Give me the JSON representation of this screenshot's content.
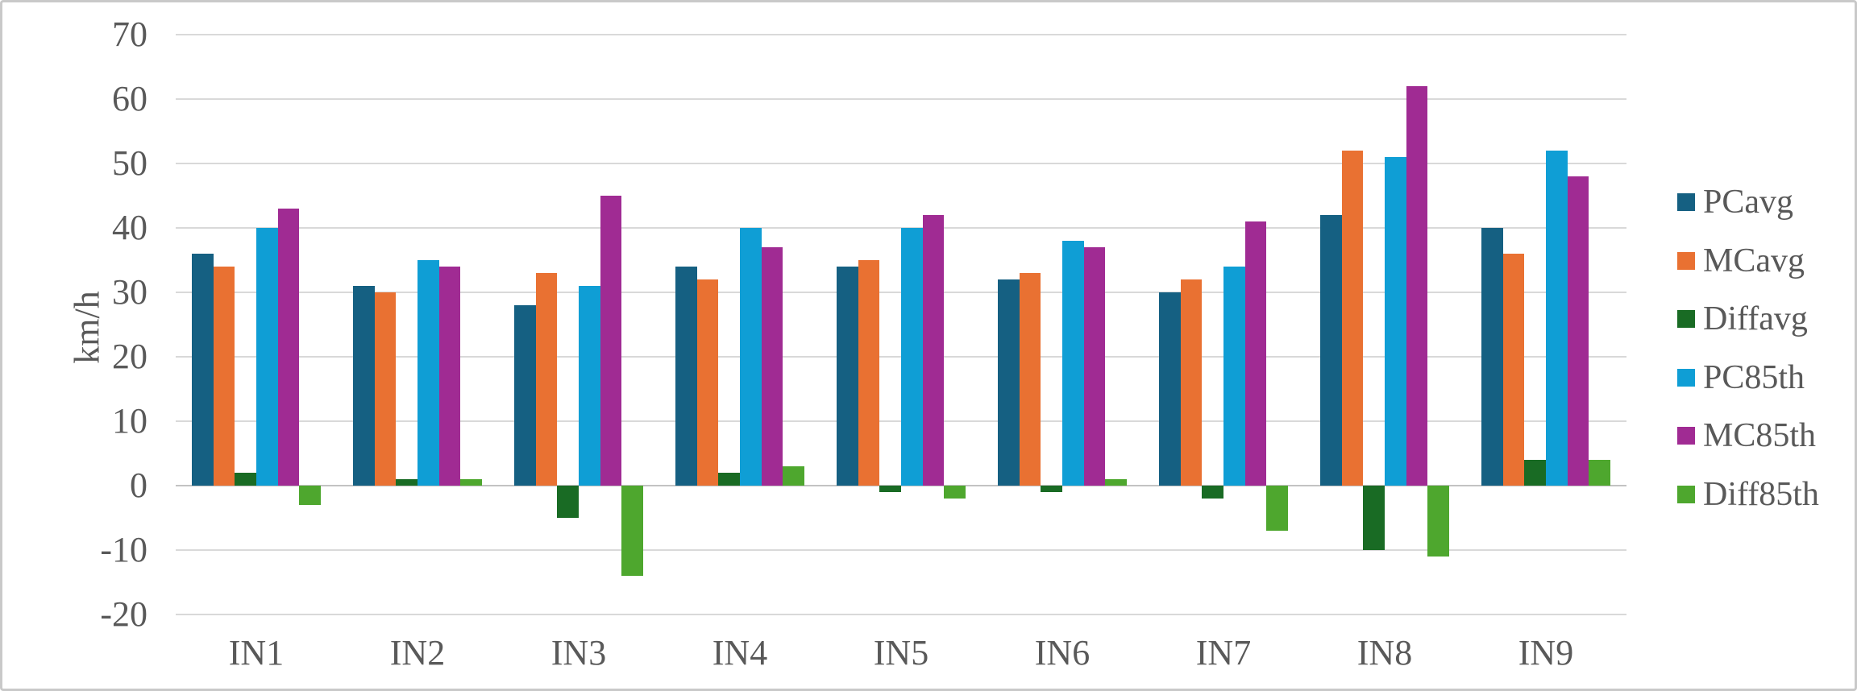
{
  "figure": {
    "background": "#ffffff",
    "border_color": "#c9c9c9",
    "text_color": "#595959",
    "gridline_color": "#d9d9d9",
    "zero_line_color": "#c3c3c3"
  },
  "axes": {
    "y_axis_title": "km/h",
    "y_ticks": [
      70,
      60,
      50,
      40,
      30,
      20,
      10,
      0,
      -10,
      -20
    ]
  },
  "chart_data": {
    "type": "bar",
    "title": "",
    "xlabel": "",
    "ylabel": "km/h",
    "ylim": [
      -20,
      70
    ],
    "grid": "horizontal",
    "legend_position": "right",
    "categories": [
      "IN1",
      "IN2",
      "IN3",
      "IN4",
      "IN5",
      "IN6",
      "IN7",
      "IN8",
      "IN9"
    ],
    "series": [
      {
        "name": "PCavg",
        "color": "#156082",
        "values": [
          36,
          31,
          28,
          34,
          34,
          32,
          30,
          42,
          40
        ]
      },
      {
        "name": "MCavg",
        "color": "#E97132",
        "values": [
          34,
          30,
          33,
          32,
          35,
          33,
          32,
          52,
          36
        ]
      },
      {
        "name": "Diffavg",
        "color": "#196B24",
        "values": [
          2,
          1,
          -5,
          2,
          -1,
          -1,
          -2,
          -10,
          4
        ]
      },
      {
        "name": "PC85th",
        "color": "#0F9ED5",
        "values": [
          40,
          35,
          31,
          40,
          40,
          38,
          34,
          51,
          52
        ]
      },
      {
        "name": "MC85th",
        "color": "#A02B93",
        "values": [
          43,
          34,
          45,
          37,
          42,
          37,
          41,
          62,
          48
        ]
      },
      {
        "name": "Diff85th",
        "color": "#4EA72E",
        "values": [
          -3,
          1,
          -14,
          3,
          -2,
          1,
          -7,
          -11,
          4
        ]
      }
    ]
  }
}
